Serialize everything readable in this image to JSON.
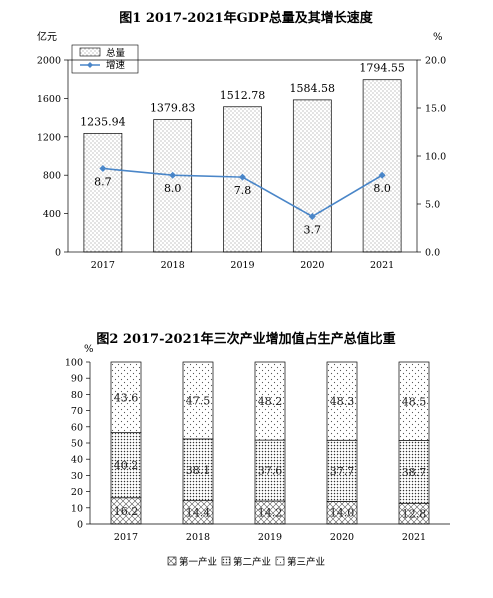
{
  "chart_data": [
    {
      "type": "bar+line",
      "title": "图1 2017-2021年GDP总量及其增长速度",
      "y_left_unit": "亿元",
      "y_right_unit": "%",
      "y_left_range": [
        0,
        2000
      ],
      "y_left_ticks": [
        "0",
        "400",
        "800",
        "1200",
        "1600",
        "2000"
      ],
      "y_right_range": [
        0,
        20
      ],
      "y_right_ticks": [
        "0.0",
        "5.0",
        "10.0",
        "15.0",
        "20.0"
      ],
      "categories": [
        "2017",
        "2018",
        "2019",
        "2020",
        "2021"
      ],
      "series": [
        {
          "name": "总量",
          "type": "bar",
          "values": [
            1235.94,
            1379.83,
            1512.78,
            1584.58,
            1794.55
          ],
          "labels": [
            "1235.94",
            "1379.83",
            "1512.78",
            "1584.58",
            "1794.55"
          ]
        },
        {
          "name": "增速",
          "type": "line",
          "axis": "right",
          "values": [
            8.7,
            8.0,
            7.8,
            3.7,
            8.0
          ],
          "labels": [
            "8.7",
            "8.0",
            "7.8",
            "3.7",
            "8.0"
          ],
          "color": "#4a86c8"
        }
      ],
      "legend_position": "top-left",
      "grid": false
    },
    {
      "type": "stacked-bar",
      "title": "图2 2017-2021年三次产业增加值占生产总值比重",
      "y_unit": "%",
      "y_range": [
        0,
        100
      ],
      "y_ticks": [
        "0",
        "10",
        "20",
        "30",
        "40",
        "50",
        "60",
        "70",
        "80",
        "90",
        "100"
      ],
      "categories": [
        "2017",
        "2018",
        "2019",
        "2020",
        "2021"
      ],
      "series": [
        {
          "name": "第一产业",
          "values": [
            16.2,
            14.4,
            14.2,
            14.0,
            12.8
          ],
          "labels": [
            "16.2",
            "14.4",
            "14.2",
            "14.0",
            "12.8"
          ]
        },
        {
          "name": "第二产业",
          "values": [
            40.2,
            38.1,
            37.6,
            37.7,
            38.7
          ],
          "labels": [
            "40.2",
            "38.1",
            "37.6",
            "37.7",
            "38.7"
          ]
        },
        {
          "name": "第三产业",
          "values": [
            43.6,
            47.5,
            48.2,
            48.3,
            48.5
          ],
          "labels": [
            "43.6",
            "47.5",
            "48.2",
            "48.3",
            "48.5"
          ]
        }
      ],
      "legend_position": "bottom",
      "grid": false
    }
  ]
}
